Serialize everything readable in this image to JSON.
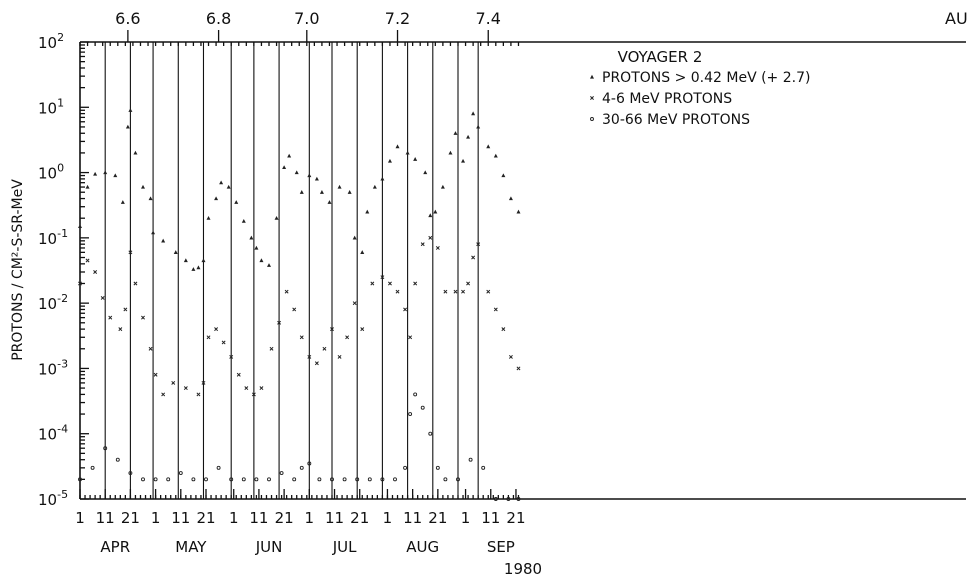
{
  "chart_data": {
    "type": "scatter",
    "title": "VOYAGER 2",
    "ylabel": "PROTONS / CM²-S-SR-MeV",
    "xlabel": "1980",
    "yscale": "log",
    "ylim": [
      1e-05,
      100
    ],
    "y_ticks": [
      {
        "exp": "-5",
        "value": 1e-05
      },
      {
        "exp": "-4",
        "value": 0.0001
      },
      {
        "exp": "-3",
        "value": 0.001
      },
      {
        "exp": "-2",
        "value": 0.01
      },
      {
        "exp": "-1",
        "value": 0.1
      },
      {
        "exp": "0",
        "value": 1
      },
      {
        "exp": "1",
        "value": 10
      },
      {
        "exp": "2",
        "value": 100
      }
    ],
    "y_tick_base": "10",
    "x_ticks": [
      {
        "label": "1",
        "day": 0
      },
      {
        "label": "11",
        "day": 10
      },
      {
        "label": "21",
        "day": 20
      },
      {
        "label": "1",
        "day": 30
      },
      {
        "label": "11",
        "day": 40
      },
      {
        "label": "21",
        "day": 50
      },
      {
        "label": "1",
        "day": 61
      },
      {
        "label": "11",
        "day": 71
      },
      {
        "label": "21",
        "day": 81
      },
      {
        "label": "1",
        "day": 91
      },
      {
        "label": "11",
        "day": 101
      },
      {
        "label": "21",
        "day": 111
      },
      {
        "label": "1",
        "day": 122
      },
      {
        "label": "11",
        "day": 132
      },
      {
        "label": "21",
        "day": 142
      },
      {
        "label": "1",
        "day": 153
      },
      {
        "label": "11",
        "day": 163
      },
      {
        "label": "21",
        "day": 173
      }
    ],
    "months": [
      {
        "label": "APR",
        "day": 14
      },
      {
        "label": "MAY",
        "day": 44
      },
      {
        "label": "JUN",
        "day": 75
      },
      {
        "label": "JUL",
        "day": 105
      },
      {
        "label": "AUG",
        "day": 136
      },
      {
        "label": "SEP",
        "day": 167
      }
    ],
    "top_axis_label": "AU",
    "top_ticks": [
      {
        "label": "6.6",
        "day": 19
      },
      {
        "label": "6.8",
        "day": 55
      },
      {
        "label": "7.0",
        "day": 90
      },
      {
        "label": "7.2",
        "day": 126
      },
      {
        "label": "7.4",
        "day": 162
      }
    ],
    "vertical_lines_days": [
      10,
      20,
      29,
      39,
      49,
      60,
      69,
      79,
      91,
      100,
      110,
      120,
      130,
      140,
      150,
      158
    ],
    "legend": {
      "position": "top-right",
      "entries": [
        {
          "marker": "triangle",
          "text": "PROTONS > 0.42 MeV (+ 2.7)"
        },
        {
          "marker": "cross",
          "text": "4-6 MeV PROTONS"
        },
        {
          "marker": "circle",
          "text": "30-66 MeV PROTONS"
        }
      ]
    },
    "series": [
      {
        "name": "PROTONS > 0.42 MeV (+ 2.7)",
        "marker": "triangle",
        "x": [
          0,
          3,
          6,
          10,
          14,
          17,
          19,
          20,
          22,
          25,
          28,
          29,
          33,
          38,
          42,
          45,
          47,
          49,
          51,
          54,
          56,
          59,
          62,
          65,
          68,
          70,
          72,
          75,
          78,
          81,
          83,
          86,
          88,
          91,
          94,
          96,
          99,
          103,
          107,
          109,
          112,
          114,
          117,
          120,
          123,
          126,
          130,
          133,
          137,
          139,
          141,
          144,
          147,
          149,
          152,
          154,
          156,
          158,
          162,
          165,
          168,
          171,
          174
        ],
        "y": [
          0.15,
          0.6,
          0.95,
          1.0,
          0.9,
          0.35,
          5,
          9,
          2,
          0.6,
          0.4,
          0.12,
          0.09,
          0.06,
          0.045,
          0.033,
          0.035,
          0.045,
          0.2,
          0.4,
          0.7,
          0.6,
          0.35,
          0.18,
          0.1,
          0.07,
          0.045,
          0.038,
          0.2,
          1.2,
          1.8,
          1.0,
          0.5,
          0.9,
          0.8,
          0.5,
          0.35,
          0.6,
          0.5,
          0.1,
          0.06,
          0.25,
          0.6,
          0.8,
          1.5,
          2.5,
          2.0,
          1.6,
          1.0,
          0.22,
          0.25,
          0.6,
          2.0,
          4.0,
          1.5,
          3.5,
          8,
          5,
          2.5,
          1.8,
          0.9,
          0.4,
          0.25
        ]
      },
      {
        "name": "4-6 MeV PROTONS",
        "marker": "cross",
        "x": [
          0,
          3,
          6,
          9,
          12,
          16,
          18,
          20,
          22,
          25,
          28,
          30,
          33,
          37,
          42,
          47,
          49,
          51,
          54,
          57,
          60,
          63,
          66,
          69,
          72,
          76,
          79,
          82,
          85,
          88,
          91,
          94,
          97,
          100,
          103,
          106,
          109,
          112,
          116,
          120,
          123,
          126,
          129,
          131,
          133,
          136,
          139,
          142,
          145,
          149,
          152,
          154,
          156,
          158,
          162,
          165,
          168,
          171,
          174
        ],
        "y": [
          0.02,
          0.045,
          0.03,
          0.012,
          0.006,
          0.004,
          0.008,
          0.06,
          0.02,
          0.006,
          0.002,
          0.0008,
          0.0004,
          0.0006,
          0.0005,
          0.0004,
          0.0006,
          0.003,
          0.004,
          0.0025,
          0.0015,
          0.0008,
          0.0005,
          0.0004,
          0.0005,
          0.002,
          0.005,
          0.015,
          0.008,
          0.003,
          0.0015,
          0.0012,
          0.002,
          0.004,
          0.0015,
          0.003,
          0.01,
          0.004,
          0.02,
          0.025,
          0.02,
          0.015,
          0.008,
          0.003,
          0.02,
          0.08,
          0.1,
          0.07,
          0.015,
          0.015,
          0.015,
          0.02,
          0.05,
          0.08,
          0.015,
          0.008,
          0.004,
          0.0015,
          0.001
        ]
      },
      {
        "name": "30-66 MeV PROTONS",
        "marker": "circle",
        "x": [
          0,
          5,
          10,
          15,
          20,
          25,
          30,
          35,
          40,
          45,
          50,
          55,
          60,
          65,
          70,
          75,
          80,
          85,
          88,
          91,
          95,
          100,
          105,
          110,
          115,
          120,
          125,
          129,
          131,
          133,
          136,
          139,
          142,
          145,
          150,
          155,
          160,
          165,
          170,
          174
        ],
        "y": [
          2e-05,
          3e-05,
          6e-05,
          4e-05,
          2.5e-05,
          2e-05,
          2e-05,
          2e-05,
          2.5e-05,
          2e-05,
          2e-05,
          3e-05,
          2e-05,
          2e-05,
          2e-05,
          2e-05,
          2.5e-05,
          2e-05,
          3e-05,
          3.5e-05,
          2e-05,
          2e-05,
          2e-05,
          2e-05,
          2e-05,
          2e-05,
          2e-05,
          3e-05,
          0.0002,
          0.0004,
          0.00025,
          0.0001,
          3e-05,
          2e-05,
          2e-05,
          4e-05,
          3e-05,
          1e-05,
          1e-05,
          1e-05
        ]
      }
    ]
  }
}
